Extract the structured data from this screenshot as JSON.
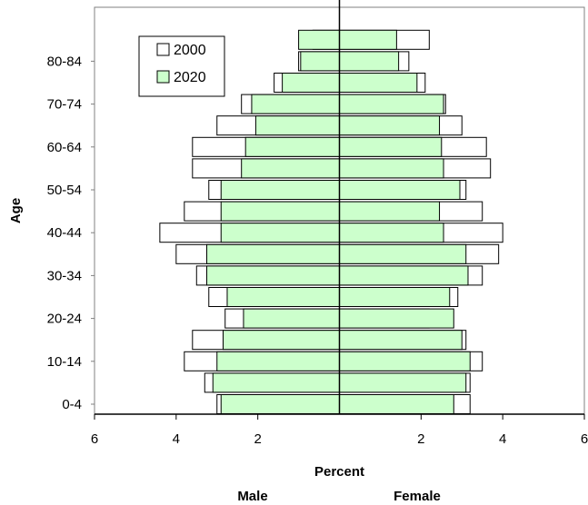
{
  "chart_data": {
    "type": "population-pyramid",
    "title": "",
    "xlabel": "Percent",
    "ylabel": "Age",
    "side_labels": {
      "left": "Male",
      "right": "Female"
    },
    "x_tick_labels": [
      "6",
      "4",
      "2",
      "2",
      "4",
      "6"
    ],
    "x_tick_values": [
      -6,
      -4,
      -2,
      2,
      4,
      6
    ],
    "xlim": [
      -6,
      6
    ],
    "age_groups": [
      "0-4",
      "5-9",
      "10-14",
      "15-19",
      "20-24",
      "25-29",
      "30-34",
      "35-39",
      "40-44",
      "45-49",
      "50-54",
      "55-59",
      "60-64",
      "65-69",
      "70-74",
      "75-79",
      "80-84",
      "85+"
    ],
    "y_tick_labels": [
      "0-4",
      "10-14",
      "20-24",
      "30-34",
      "40-44",
      "50-54",
      "60-64",
      "70-74",
      "80-84"
    ],
    "grid": false,
    "legend": {
      "position": "top-left",
      "entries": [
        {
          "label": "2000",
          "color": "#ffffff"
        },
        {
          "label": "2020",
          "color": "#ccffcc"
        }
      ]
    },
    "series": [
      {
        "name": "2000",
        "color": "#ffffff",
        "male": [
          3.0,
          3.3,
          3.8,
          3.6,
          2.8,
          3.2,
          3.5,
          4.0,
          4.4,
          3.8,
          3.2,
          3.6,
          3.6,
          3.0,
          2.4,
          1.6,
          1.0,
          0.65
        ],
        "female": [
          3.2,
          3.2,
          3.5,
          3.1,
          2.2,
          2.9,
          3.5,
          3.9,
          4.0,
          3.5,
          3.1,
          3.7,
          3.6,
          3.0,
          2.6,
          2.1,
          1.7,
          2.2
        ]
      },
      {
        "name": "2020",
        "color": "#ccffcc",
        "male": [
          2.9,
          3.1,
          3.0,
          2.85,
          2.35,
          2.75,
          3.25,
          3.25,
          2.9,
          2.9,
          2.9,
          2.4,
          2.3,
          2.05,
          2.15,
          1.4,
          0.95,
          1.0
        ],
        "female": [
          2.8,
          3.1,
          3.2,
          3.0,
          2.8,
          2.7,
          3.15,
          3.1,
          2.55,
          2.45,
          2.95,
          2.55,
          2.5,
          2.45,
          2.55,
          1.9,
          1.45,
          1.4
        ]
      }
    ]
  }
}
